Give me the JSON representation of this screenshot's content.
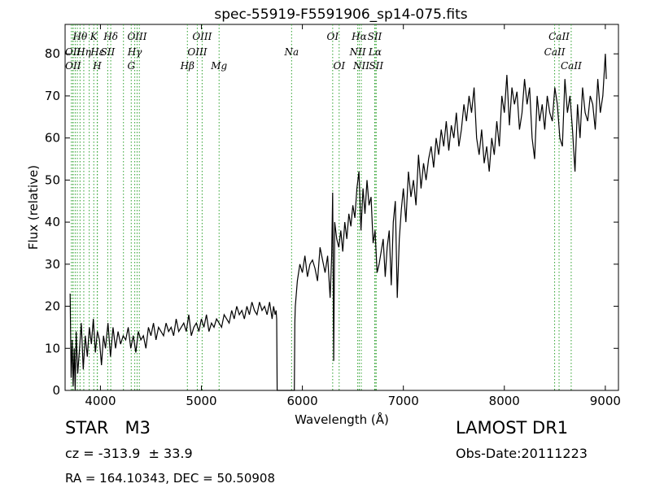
{
  "chart_data": {
    "type": "line",
    "title": "spec-55919-F5591906_sp14-075.fits",
    "xlabel": "Wavelength (Å)",
    "ylabel": "Flux (relative)",
    "xlim": [
      3650,
      9130
    ],
    "ylim": [
      0,
      87
    ],
    "xticks": [
      "4000",
      "5000",
      "6000",
      "7000",
      "8000",
      "9000"
    ],
    "yticks": [
      "0",
      "10",
      "20",
      "30",
      "40",
      "50",
      "60",
      "70",
      "80"
    ],
    "xtick_values": [
      4000,
      5000,
      6000,
      7000,
      8000,
      9000
    ],
    "ytick_values": [
      0,
      10,
      20,
      30,
      40,
      50,
      60,
      70,
      80
    ],
    "series_color": "#000000",
    "line_marker_color": "#2ca02c",
    "series": [
      {
        "x": [
          3700,
          3710,
          3720,
          3730,
          3740,
          3750,
          3760,
          3775,
          3790,
          3810,
          3830,
          3850,
          3870,
          3890,
          3910,
          3930,
          3950,
          3970,
          3990,
          4010,
          4030,
          4050,
          4075,
          4100,
          4125,
          4150,
          4175,
          4200,
          4225,
          4250,
          4275,
          4300,
          4325,
          4350,
          4375,
          4400,
          4425,
          4450,
          4475,
          4500,
          4525,
          4550,
          4575,
          4600,
          4625,
          4650,
          4675,
          4700,
          4725,
          4750,
          4775,
          4800,
          4825,
          4850,
          4875,
          4900,
          4925,
          4950,
          4975,
          5000,
          5025,
          5050,
          5075,
          5100,
          5125,
          5150,
          5175,
          5200,
          5225,
          5250,
          5275,
          5300,
          5325,
          5350,
          5375,
          5400,
          5425,
          5450,
          5475,
          5500,
          5525,
          5550,
          5575,
          5600,
          5625,
          5650,
          5675,
          5700,
          5715,
          5730,
          5740,
          5745,
          5750,
          5800,
          5850,
          5900,
          5920,
          5925,
          5930,
          5950,
          5975,
          6000,
          6025,
          6050,
          6075,
          6100,
          6125,
          6150,
          6175,
          6200,
          6225,
          6250,
          6275,
          6290,
          6300,
          6310,
          6320,
          6340,
          6360,
          6380,
          6400,
          6420,
          6440,
          6460,
          6480,
          6500,
          6520,
          6540,
          6560,
          6580,
          6600,
          6620,
          6640,
          6660,
          6680,
          6700,
          6720,
          6740,
          6760,
          6780,
          6800,
          6820,
          6840,
          6860,
          6880,
          6900,
          6920,
          6940,
          6960,
          6980,
          7000,
          7025,
          7050,
          7075,
          7100,
          7125,
          7150,
          7175,
          7200,
          7225,
          7250,
          7275,
          7300,
          7325,
          7350,
          7375,
          7400,
          7425,
          7450,
          7475,
          7500,
          7525,
          7550,
          7575,
          7600,
          7625,
          7650,
          7675,
          7700,
          7725,
          7750,
          7775,
          7800,
          7825,
          7850,
          7875,
          7900,
          7925,
          7950,
          7975,
          8000,
          8025,
          8050,
          8075,
          8100,
          8125,
          8150,
          8175,
          8200,
          8225,
          8250,
          8275,
          8300,
          8325,
          8350,
          8375,
          8400,
          8425,
          8450,
          8475,
          8500,
          8525,
          8550,
          8575,
          8600,
          8625,
          8650,
          8675,
          8700,
          8725,
          8750,
          8775,
          8800,
          8825,
          8850,
          8875,
          8900,
          8925,
          8950,
          8975,
          9000,
          9010
        ],
        "values": [
          23,
          3,
          12,
          1,
          10,
          0,
          14,
          4,
          9,
          16,
          5,
          13,
          8,
          15,
          11,
          17,
          9,
          14,
          12,
          6,
          13,
          10,
          16,
          8,
          15,
          10,
          14,
          11,
          13,
          12,
          15,
          10,
          13,
          9,
          14,
          12,
          13,
          10,
          15,
          13,
          16,
          12,
          15,
          14,
          13,
          16,
          14,
          15,
          13,
          17,
          14,
          15,
          16,
          14,
          18,
          13,
          15,
          16,
          14,
          17,
          15,
          18,
          14,
          16,
          15,
          17,
          16,
          15,
          18,
          17,
          16,
          19,
          17,
          20,
          18,
          19,
          17,
          20,
          18,
          21,
          19,
          18,
          21,
          19,
          20,
          18,
          21,
          17,
          20,
          18,
          19,
          17,
          0,
          0,
          0,
          0,
          0,
          16,
          20,
          26,
          30,
          28,
          32,
          27,
          30,
          31,
          29,
          26,
          34,
          31,
          28,
          32,
          22,
          32,
          47,
          7,
          40,
          36,
          34,
          38,
          33,
          40,
          36,
          42,
          39,
          44,
          41,
          48,
          52,
          38,
          48,
          42,
          50,
          44,
          46,
          35,
          38,
          28,
          30,
          33,
          36,
          27,
          34,
          38,
          25,
          40,
          45,
          22,
          36,
          43,
          48,
          40,
          52,
          46,
          50,
          44,
          56,
          48,
          54,
          50,
          55,
          58,
          53,
          60,
          56,
          62,
          58,
          64,
          57,
          63,
          60,
          66,
          58,
          62,
          68,
          64,
          70,
          66,
          72,
          60,
          56,
          62,
          54,
          58,
          52,
          60,
          56,
          64,
          58,
          70,
          66,
          75,
          63,
          72,
          68,
          71,
          62,
          66,
          74,
          68,
          72,
          60,
          55,
          70,
          64,
          68,
          62,
          70,
          66,
          64,
          72,
          68,
          60,
          58,
          74,
          66,
          70,
          62,
          52,
          68,
          60,
          72,
          66,
          64,
          70,
          68,
          62,
          74,
          66,
          70,
          80,
          74
        ]
      }
    ],
    "spectral_lines": [
      {
        "label": "Hθ",
        "x": 3798,
        "row": 0
      },
      {
        "label": "K",
        "x": 3934,
        "row": 0
      },
      {
        "label": "Hδ",
        "x": 4102,
        "row": 0
      },
      {
        "label": "OIII",
        "x": 4363,
        "row": 0
      },
      {
        "label": "OIII",
        "x": 5007,
        "row": 0
      },
      {
        "label": "OI",
        "x": 6300,
        "row": 0
      },
      {
        "label": "Hα",
        "x": 6563,
        "row": 0
      },
      {
        "label": "SII",
        "x": 6716,
        "row": 0
      },
      {
        "label": "CaII",
        "x": 8542,
        "row": 0
      },
      {
        "label": "Hγ",
        "x": 4340,
        "row": 1
      },
      {
        "label": "OIII",
        "x": 4959,
        "row": 1
      },
      {
        "label": "Na",
        "x": 5893,
        "row": 1
      },
      {
        "label": "NII",
        "x": 6548,
        "row": 1
      },
      {
        "label": "Lα",
        "x": 6720,
        "row": 1
      },
      {
        "label": "CaII",
        "x": 8498,
        "row": 1
      },
      {
        "label": "OII",
        "x": 3727,
        "row": 1
      },
      {
        "label": "Hε",
        "x": 3970,
        "row": 1
      },
      {
        "label": "SII",
        "x": 4072,
        "row": 1
      },
      {
        "label": "Hη",
        "x": 3835,
        "row": 1
      },
      {
        "label": "OII",
        "x": 3729,
        "row": 2
      },
      {
        "label": "H",
        "x": 3968,
        "row": 2
      },
      {
        "label": "G",
        "x": 4305,
        "row": 2
      },
      {
        "label": "Hβ",
        "x": 4861,
        "row": 2
      },
      {
        "label": "Mg",
        "x": 5175,
        "row": 2
      },
      {
        "label": "OI",
        "x": 6364,
        "row": 2
      },
      {
        "label": "NII",
        "x": 6583,
        "row": 2
      },
      {
        "label": "SII",
        "x": 6731,
        "row": 2
      },
      {
        "label": "CaII",
        "x": 8662,
        "row": 2
      }
    ],
    "extra_line_positions": [
      3712,
      3750,
      3771,
      3889,
      4228,
      4385
    ]
  },
  "info": {
    "object_class": "STAR   M3",
    "redshift": "cz = -313.9  ± 33.9",
    "coords": "RA = 164.10343, DEC = 50.50908",
    "survey": "LAMOST DR1",
    "obs_date": "Obs-Date:20111223"
  }
}
